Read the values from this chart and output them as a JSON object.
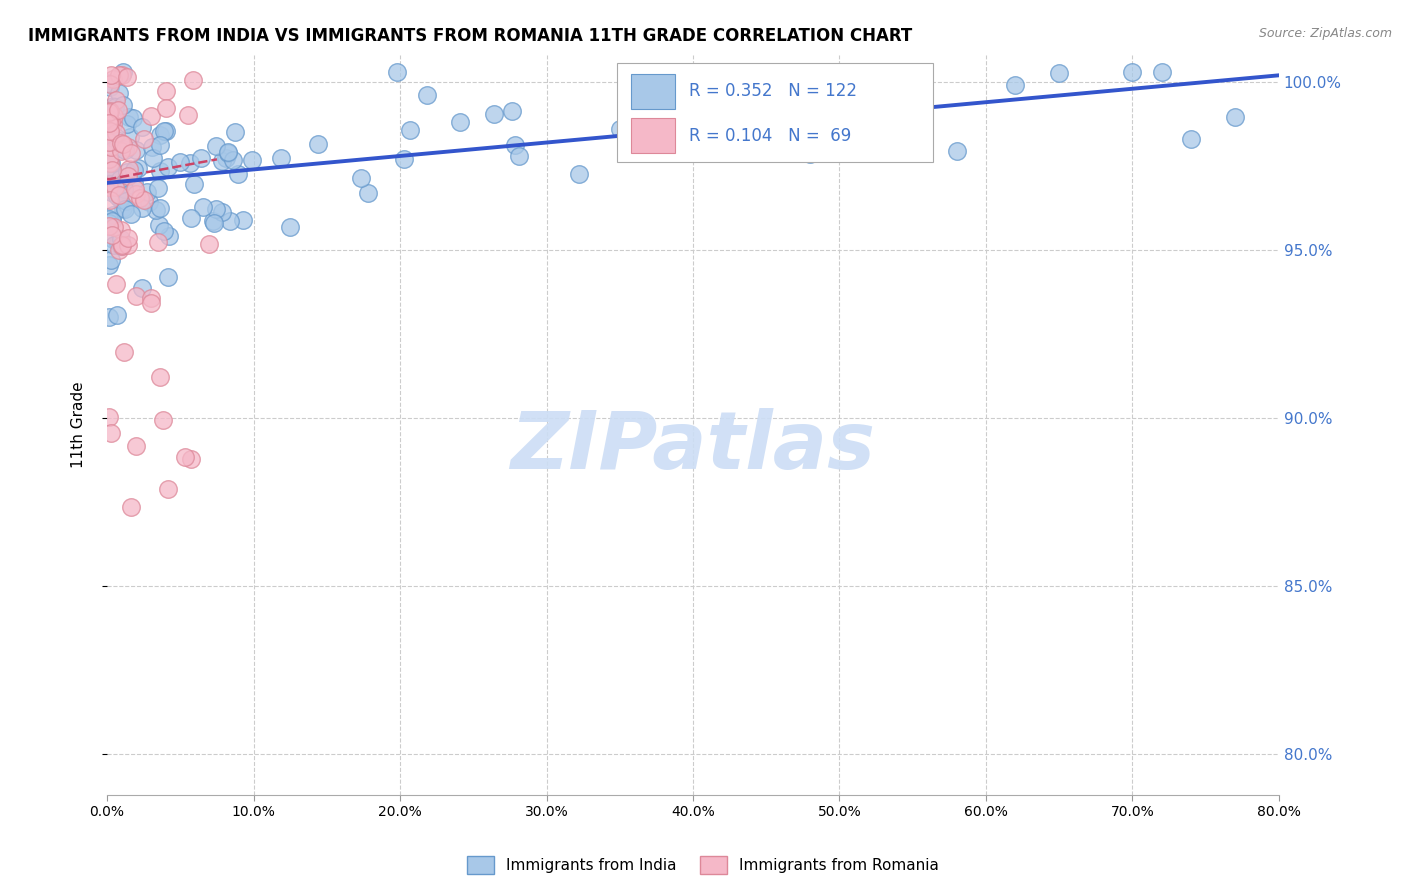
{
  "title": "IMMIGRANTS FROM INDIA VS IMMIGRANTS FROM ROMANIA 11TH GRADE CORRELATION CHART",
  "source": "Source: ZipAtlas.com",
  "ylabel": "11th Grade",
  "y_tick_vals": [
    1.0,
    0.95,
    0.9,
    0.85,
    0.8
  ],
  "y_tick_labels": [
    "100.0%",
    "95.0%",
    "90.0%",
    "85.0%",
    "80.0%"
  ],
  "x_min": 0.0,
  "x_max": 0.8,
  "y_min": 0.788,
  "y_max": 1.008,
  "india_R": 0.352,
  "india_N": 122,
  "romania_R": 0.104,
  "romania_N": 69,
  "india_color": "#a8c8e8",
  "romania_color": "#f5b8c8",
  "india_edge": "#6699cc",
  "romania_edge": "#dd8899",
  "trend_india_color": "#3355cc",
  "trend_romania_color": "#cc4466",
  "legend_text_color": "#4477cc",
  "watermark_color": "#ccddf5",
  "legend_india_label": "Immigrants from India",
  "legend_romania_label": "Immigrants from Romania",
  "india_trend_x0": 0.0,
  "india_trend_y0": 0.97,
  "india_trend_x1": 0.8,
  "india_trend_y1": 1.002,
  "romania_trend_x0": 0.0,
  "romania_trend_y0": 0.971,
  "romania_trend_x1": 0.075,
  "romania_trend_y1": 0.977
}
